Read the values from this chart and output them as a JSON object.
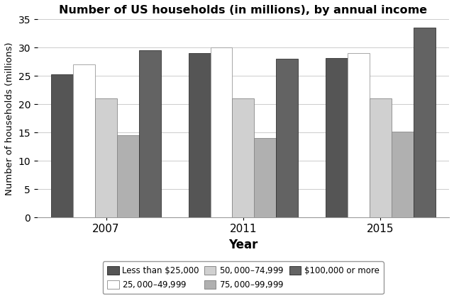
{
  "title": "Number of US households (in millions), by annual income",
  "xlabel": "Year",
  "ylabel": "Number of households (millions)",
  "years": [
    "2007",
    "2011",
    "2015"
  ],
  "categories": [
    "Less than $25,000",
    "$25,000–$49,999",
    "$50,000–$74,999",
    "$75,000–$99,999",
    "$100,000 or more"
  ],
  "values": {
    "Less than $25,000": [
      25.3,
      29.0,
      28.1
    ],
    "$25,000–$49,999": [
      27.0,
      30.0,
      29.0
    ],
    "$50,000–$74,999": [
      21.0,
      21.0,
      21.0
    ],
    "$75,000–$99,999": [
      14.5,
      14.0,
      15.2
    ],
    "$100,000 or more": [
      29.5,
      28.0,
      33.5
    ]
  },
  "colors": [
    "#555555",
    "#ffffff",
    "#d0d0d0",
    "#b0b0b0",
    "#636363"
  ],
  "edgecolors": [
    "#333333",
    "#999999",
    "#888888",
    "#888888",
    "#333333"
  ],
  "ylim": [
    0,
    35
  ],
  "yticks": [
    0,
    5,
    10,
    15,
    20,
    25,
    30,
    35
  ],
  "bar_width": 0.16,
  "figsize": [
    6.4,
    4.21
  ],
  "dpi": 100
}
